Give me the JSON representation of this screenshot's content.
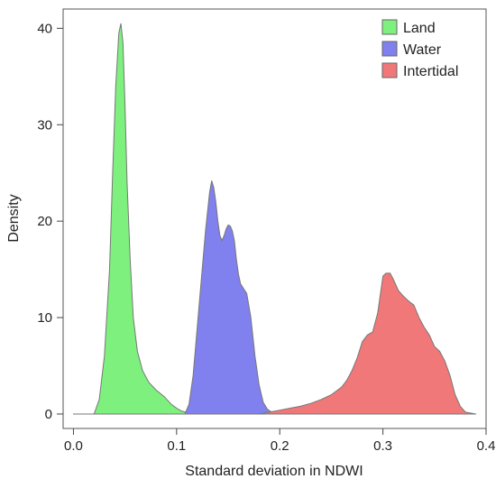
{
  "chart_data": {
    "type": "area",
    "title": "",
    "xlabel": "Standard deviation in NDWI",
    "ylabel": "Density",
    "xlim": [
      -0.01,
      0.4
    ],
    "ylim": [
      -1.5,
      42
    ],
    "xticks": [
      0.0,
      0.1,
      0.2,
      0.3,
      0.4
    ],
    "xtick_labels": [
      "0.0",
      "0.1",
      "0.2",
      "0.3",
      "0.4"
    ],
    "yticks": [
      0,
      10,
      20,
      30,
      40
    ],
    "ytick_labels": [
      "0",
      "10",
      "20",
      "30",
      "40"
    ],
    "grid": false,
    "legend": "top-right",
    "series": [
      {
        "name": "Land",
        "color": "#7ef07e",
        "x": [
          0.0,
          0.02,
          0.025,
          0.03,
          0.035,
          0.038,
          0.041,
          0.044,
          0.046,
          0.048,
          0.05,
          0.052,
          0.055,
          0.058,
          0.062,
          0.067,
          0.073,
          0.08,
          0.088,
          0.095,
          0.1,
          0.105,
          0.11,
          0.12,
          0.13
        ],
        "y": [
          0,
          0,
          1.5,
          6,
          15,
          25,
          34,
          39.5,
          40.5,
          38.5,
          32,
          24,
          16,
          10,
          6.5,
          4.5,
          3.3,
          2.5,
          1.8,
          1.0,
          0.6,
          0.3,
          0.15,
          0.05,
          0
        ]
      },
      {
        "name": "Water",
        "color": "#8080ee",
        "x": [
          0.1,
          0.108,
          0.112,
          0.116,
          0.12,
          0.124,
          0.128,
          0.132,
          0.134,
          0.136,
          0.138,
          0.14,
          0.142,
          0.144,
          0.146,
          0.148,
          0.15,
          0.152,
          0.154,
          0.156,
          0.158,
          0.16,
          0.162,
          0.165,
          0.168,
          0.172,
          0.176,
          0.18,
          0.184,
          0.188,
          0.192,
          0.2
        ],
        "y": [
          0,
          0,
          1,
          4,
          9,
          14,
          19,
          23,
          24.2,
          23.5,
          22,
          20,
          18.5,
          18,
          18.5,
          19.2,
          19.6,
          19.5,
          19,
          18,
          16,
          14.5,
          13.5,
          13,
          12.5,
          10,
          6,
          3,
          1.2,
          0.5,
          0.2,
          0
        ]
      },
      {
        "name": "Intertidal",
        "color": "#f07878",
        "x": [
          0.18,
          0.19,
          0.2,
          0.21,
          0.22,
          0.23,
          0.24,
          0.25,
          0.26,
          0.265,
          0.27,
          0.275,
          0.28,
          0.285,
          0.29,
          0.295,
          0.3,
          0.303,
          0.307,
          0.31,
          0.315,
          0.32,
          0.325,
          0.33,
          0.335,
          0.34,
          0.345,
          0.35,
          0.355,
          0.36,
          0.365,
          0.37,
          0.375,
          0.38,
          0.39
        ],
        "y": [
          0,
          0.2,
          0.4,
          0.6,
          0.8,
          1.1,
          1.5,
          2.0,
          2.8,
          3.5,
          4.5,
          5.8,
          7.5,
          8.2,
          8.5,
          10.5,
          14.3,
          14.6,
          14.6,
          14.0,
          12.8,
          12.2,
          11.7,
          11.3,
          10.0,
          9.0,
          8.2,
          7.0,
          6.5,
          5.5,
          4.0,
          2.0,
          0.8,
          0.2,
          0
        ]
      }
    ]
  }
}
